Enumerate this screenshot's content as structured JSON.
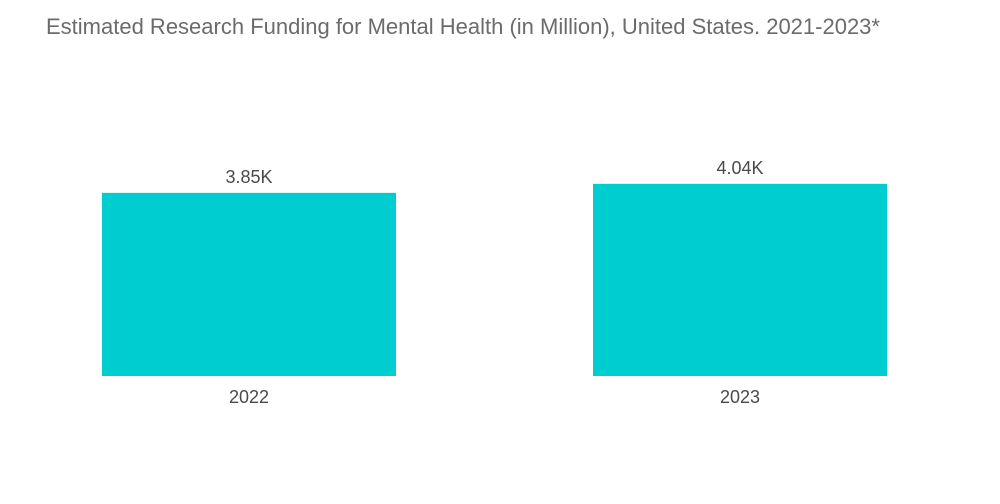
{
  "chart_data": {
    "type": "bar",
    "title": "Estimated Research Funding for Mental Health (in Million), United States. 2021-2023*",
    "categories": [
      "2022",
      "2023"
    ],
    "values": [
      3850,
      4040
    ],
    "value_labels": [
      "3.85K",
      "4.04K"
    ],
    "xlabel": "",
    "ylabel": "",
    "ylim": [
      0,
      4200
    ],
    "grid": false,
    "legend": "none",
    "bar_color": "#00CDD0"
  }
}
